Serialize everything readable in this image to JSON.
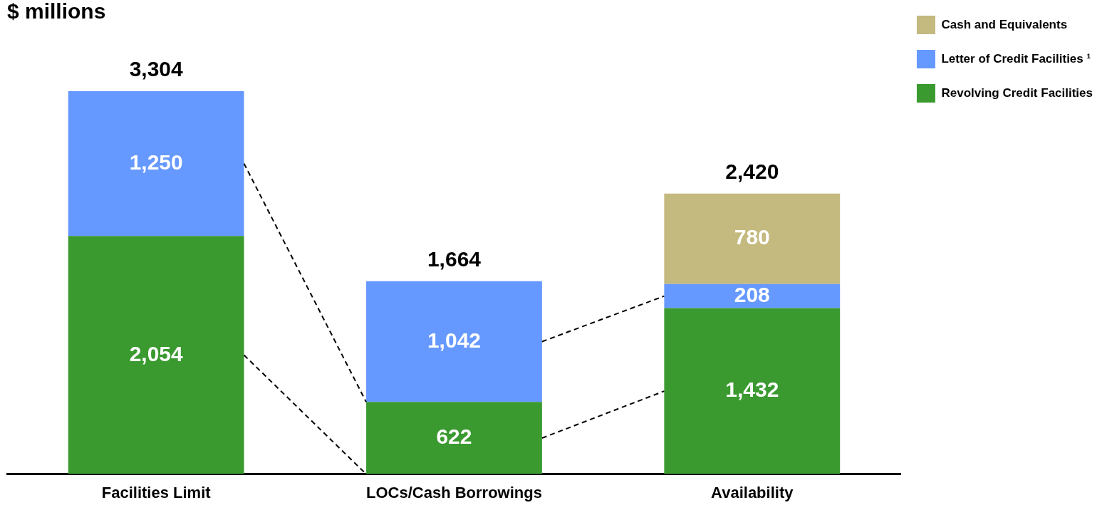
{
  "chart_data": {
    "type": "bar",
    "title": "$ millions",
    "categories": [
      "Facilities Limit",
      "LOCs/Cash Borrowings",
      "Availability"
    ],
    "stacked": true,
    "series": [
      {
        "name": "Revolving Credit Facilities",
        "color": "#3a9a30",
        "values": [
          2054,
          622,
          1432
        ],
        "value_labels": [
          "2,054",
          "622",
          "1,432"
        ]
      },
      {
        "name": "Letter of Credit Facilities ¹",
        "color": "#6699ff",
        "values": [
          1250,
          1042,
          208
        ],
        "value_labels": [
          "1,250",
          "1,042",
          "208"
        ]
      },
      {
        "name": "Cash and Equivalents",
        "color": "#c4b97f",
        "values": [
          null,
          null,
          780
        ],
        "value_labels": [
          null,
          null,
          "780"
        ]
      }
    ],
    "totals": [
      "3,304",
      "1,664",
      "2,420"
    ],
    "legend": "top right",
    "grid": false,
    "tick_labels": "x"
  }
}
